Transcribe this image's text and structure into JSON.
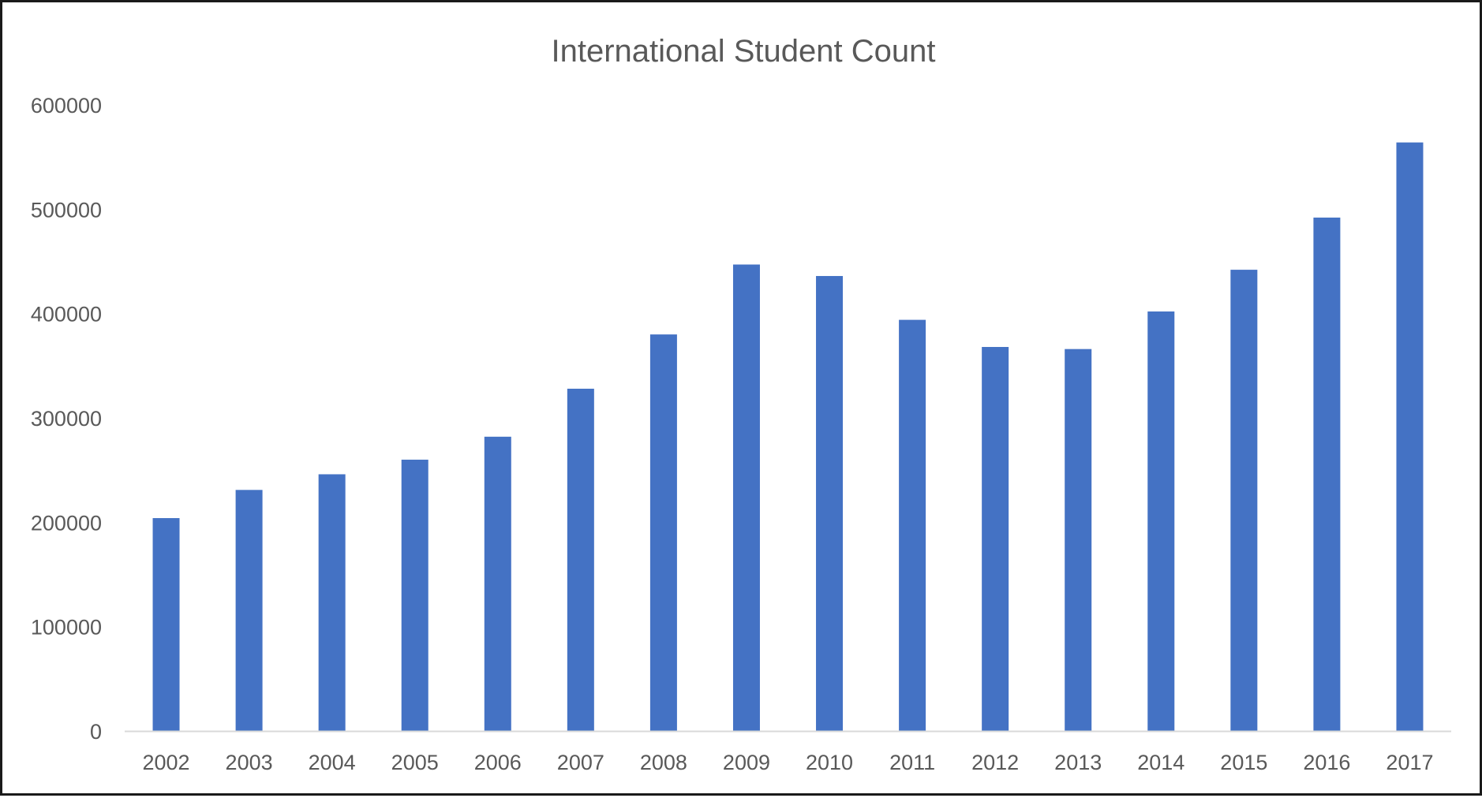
{
  "chart_data": {
    "type": "bar",
    "title": "International Student Count",
    "xlabel": "",
    "ylabel": "",
    "categories": [
      "2002",
      "2003",
      "2004",
      "2005",
      "2006",
      "2007",
      "2008",
      "2009",
      "2010",
      "2011",
      "2012",
      "2013",
      "2014",
      "2015",
      "2016",
      "2017"
    ],
    "series": [
      {
        "values": [
          204000,
          231000,
          246000,
          260000,
          282000,
          328000,
          380000,
          447000,
          436000,
          394000,
          368000,
          366000,
          402000,
          442000,
          492000,
          564000
        ]
      }
    ],
    "ylim": [
      0,
      600000
    ],
    "y_ticks": [
      "0",
      "100000",
      "200000",
      "300000",
      "400000",
      "500000",
      "600000"
    ],
    "grid": false,
    "legend": "none",
    "bar_color": "#4472C4",
    "axis_color": "#D9D9D9",
    "text_color": "#595959"
  }
}
